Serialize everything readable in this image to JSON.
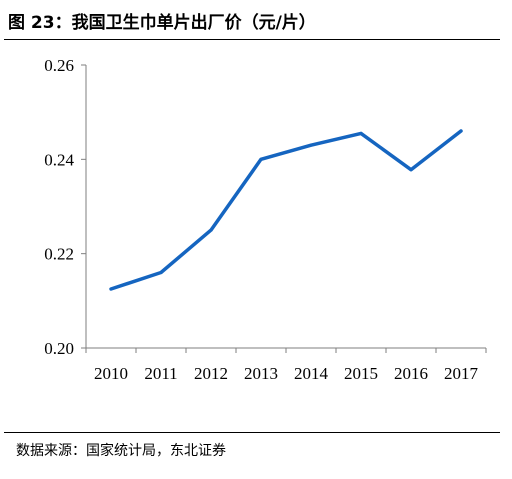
{
  "header": {
    "title": "图 23：我国卫生巾单片出厂价（元/片）"
  },
  "footer": {
    "source": "数据来源：国家统计局，东北证券"
  },
  "chart_data": {
    "type": "line",
    "title": "",
    "xlabel": "",
    "ylabel": "",
    "categories": [
      "2010",
      "2011",
      "2012",
      "2013",
      "2014",
      "2015",
      "2016",
      "2017"
    ],
    "series": [
      {
        "values": [
          0.2125,
          0.216,
          0.225,
          0.24,
          0.243,
          0.2455,
          0.2378,
          0.246
        ]
      }
    ],
    "ylim": [
      0.2,
      0.26
    ],
    "yticks": [
      "0.20",
      "0.22",
      "0.24",
      "0.26"
    ],
    "grid": false,
    "legend": "none",
    "line_color": "#1565c0"
  }
}
